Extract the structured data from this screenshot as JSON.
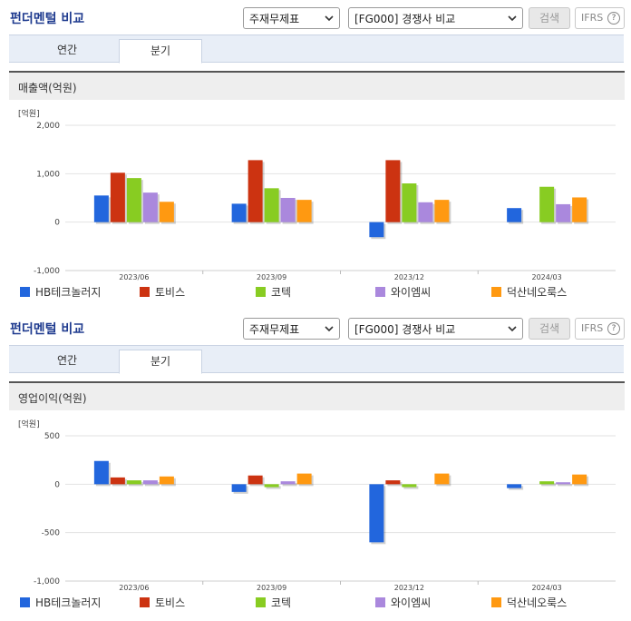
{
  "panels": [
    {
      "title": "펀더멘털 비교",
      "select_theme": "주재무제표",
      "select_compare": "[FG000] 경쟁사 비교",
      "search_label": "검색",
      "ifrs_label": "IFRS",
      "help_label": "?",
      "tabs": [
        "연간",
        "분기"
      ],
      "active_tab": 1,
      "chart_title": "매출액(억원)"
    },
    {
      "title": "펀더멘털 비교",
      "select_theme": "주재무제표",
      "select_compare": "[FG000] 경쟁사 비교",
      "search_label": "검색",
      "ifrs_label": "IFRS",
      "help_label": "?",
      "tabs": [
        "연간",
        "분기"
      ],
      "active_tab": 1,
      "chart_title": "영업이익(억원)"
    }
  ],
  "legend": [
    {
      "name": "HB테크놀러지",
      "color": "#2266dd"
    },
    {
      "name": "토비스",
      "color": "#cc3311"
    },
    {
      "name": "코텍",
      "color": "#88cc22"
    },
    {
      "name": "와이엠씨",
      "color": "#aa88dd"
    },
    {
      "name": "덕산네오룩스",
      "color": "#ff9911"
    }
  ],
  "chart_data": [
    {
      "type": "bar",
      "unit_label": "[억원]",
      "categories": [
        "2023/06",
        "2023/09",
        "2023/12",
        "2024/03"
      ],
      "ylim": [
        -1000,
        2000
      ],
      "yticks": [
        2000,
        1000,
        0,
        -1000
      ],
      "ytick_labels": [
        "2,000",
        "1,000",
        "0",
        "-1,000"
      ],
      "grid": true,
      "series": [
        {
          "name": "HB테크놀러지",
          "values": [
            550,
            380,
            -310,
            290
          ]
        },
        {
          "name": "토비스",
          "values": [
            1020,
            1280,
            1280,
            null
          ]
        },
        {
          "name": "코텍",
          "values": [
            910,
            700,
            800,
            730
          ]
        },
        {
          "name": "와이엠씨",
          "values": [
            610,
            500,
            410,
            370
          ]
        },
        {
          "name": "덕산네오룩스",
          "values": [
            420,
            460,
            460,
            510
          ]
        }
      ]
    },
    {
      "type": "bar",
      "unit_label": "[억원]",
      "categories": [
        "2023/06",
        "2023/09",
        "2023/12",
        "2024/03"
      ],
      "ylim": [
        -1000,
        500
      ],
      "yticks": [
        500,
        0,
        -500,
        -1000
      ],
      "ytick_labels": [
        "500",
        "0",
        "-500",
        "-1,000"
      ],
      "grid": true,
      "series": [
        {
          "name": "HB테크놀러지",
          "values": [
            240,
            -80,
            -600,
            -40
          ]
        },
        {
          "name": "토비스",
          "values": [
            70,
            90,
            40,
            null
          ]
        },
        {
          "name": "코텍",
          "values": [
            40,
            -30,
            -30,
            30
          ]
        },
        {
          "name": "와이엠씨",
          "values": [
            40,
            30,
            null,
            20
          ]
        },
        {
          "name": "덕산네오룩스",
          "values": [
            80,
            110,
            110,
            100
          ]
        }
      ]
    }
  ]
}
